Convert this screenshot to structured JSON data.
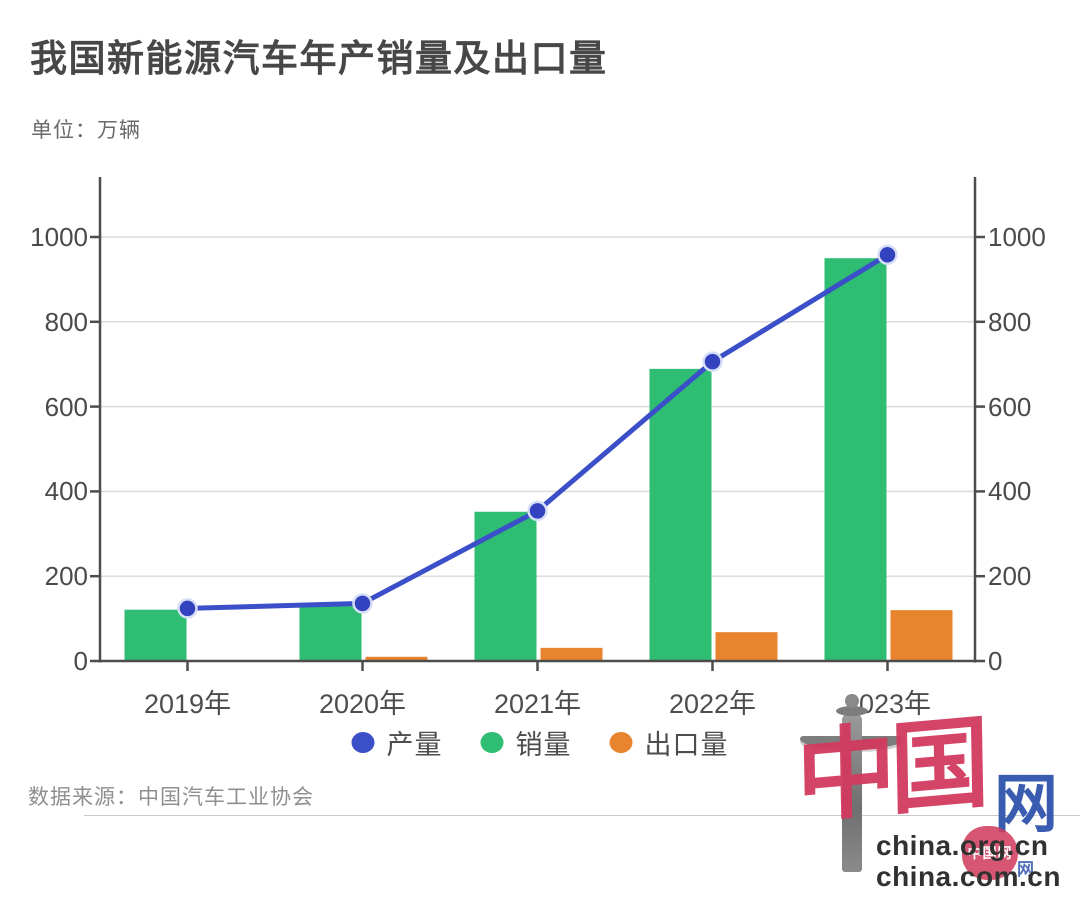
{
  "page": {
    "title": "我国新能源汽车年产销量及出口量",
    "unit_label": "单位：万辆",
    "source": "数据来源：中国汽车工业协会"
  },
  "chart_data": {
    "type": "bar",
    "subtype": "bar+line combo, dual mirrored y axes",
    "title": "我国新能源汽车年产销量及出口量",
    "unit": "万辆",
    "categories": [
      "2019年",
      "2020年",
      "2021年",
      "2022年",
      "2023年"
    ],
    "series": [
      {
        "name": "产量",
        "kind": "line",
        "color": "#3b50c8",
        "values": [
          124,
          136,
          354,
          706,
          958
        ]
      },
      {
        "name": "销量",
        "kind": "bar",
        "color": "#2ebd72",
        "values": [
          121,
          137,
          352,
          689,
          950
        ]
      },
      {
        "name": "出口量",
        "kind": "bar",
        "color": "#e8832e",
        "values": [
          0,
          10,
          31,
          68,
          120
        ]
      }
    ],
    "ylim": [
      0,
      1000
    ],
    "yticks": [
      0,
      200,
      400,
      600,
      800,
      1000
    ],
    "grid": true,
    "legend_position": "bottom",
    "xlabel": "",
    "ylabel": ""
  },
  "legend": [
    {
      "label": "产量",
      "color": "#3b50c8"
    },
    {
      "label": "销量",
      "color": "#2ebd72"
    },
    {
      "label": "出口量",
      "color": "#e8832e"
    }
  ],
  "colors": {
    "line_dot_fill": "#3343bf",
    "line_dot_halo": "#d7def7",
    "gridline": "#dcdcdc",
    "axis": "#4d4d4d"
  },
  "watermark": {
    "brand_cn": "中国",
    "brand_net": "网",
    "seal_text": "中国网",
    "domain1": "china.org.cn",
    "domain2": "china.com.cn"
  }
}
